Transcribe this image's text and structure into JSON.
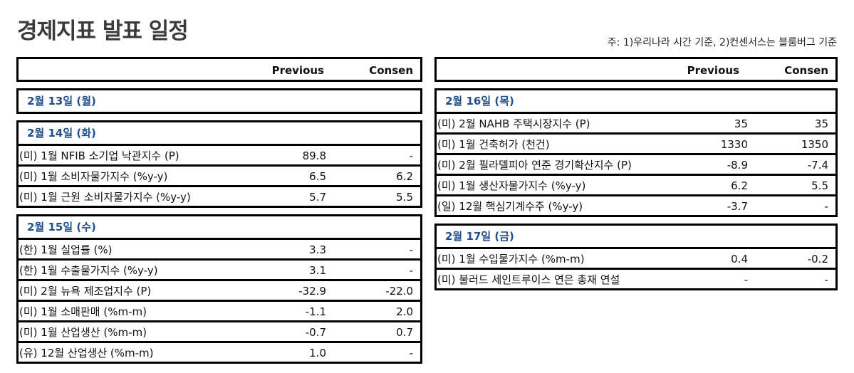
{
  "title": "경제지표 발표 일정",
  "note": "주: 1)우리나라 시간 기준, 2)컨센서스는 블룸버그 기준",
  "columns": {
    "previous": "Previous",
    "consensus": "Consen"
  },
  "left": [
    {
      "date": "2월 13일 (월)",
      "rows": []
    },
    {
      "date": "2월 14일 (화)",
      "rows": [
        {
          "name": "(미) 1월 NFIB 소기업 낙관지수 (P)",
          "prev": "89.8",
          "cons": "-"
        },
        {
          "name": "(미) 1월 소비자물가지수 (%y-y)",
          "prev": "6.5",
          "cons": "6.2"
        },
        {
          "name": "(미) 1월 근원 소비자물가지수 (%y-y)",
          "prev": "5.7",
          "cons": "5.5"
        }
      ]
    },
    {
      "date": "2월 15일 (수)",
      "rows": [
        {
          "name": "(한) 1월 실업률 (%)",
          "prev": "3.3",
          "cons": "-"
        },
        {
          "name": "(한) 1월 수출물가지수 (%y-y)",
          "prev": "3.1",
          "cons": "-"
        },
        {
          "name": "(미) 2월 뉴욕 제조업지수 (P)",
          "prev": "-32.9",
          "cons": "-22.0"
        },
        {
          "name": "(미) 1월 소매판매 (%m-m)",
          "prev": "-1.1",
          "cons": "2.0"
        },
        {
          "name": "(미) 1월 산업생산 (%m-m)",
          "prev": "-0.7",
          "cons": "0.7"
        },
        {
          "name": "(유) 12월 산업생산 (%m-m)",
          "prev": "1.0",
          "cons": "-"
        }
      ]
    }
  ],
  "right": [
    {
      "date": "2월 16일 (목)",
      "rows": [
        {
          "name": "(미) 2월 NAHB 주택시장지수 (P)",
          "prev": "35",
          "cons": "35"
        },
        {
          "name": "(미) 1월 건축허가 (천건)",
          "prev": "1330",
          "cons": "1350"
        },
        {
          "name": "(미) 2월 필라델피아 연준 경기확산지수 (P)",
          "prev": "-8.9",
          "cons": "-7.4"
        },
        {
          "name": "(미) 1월 생산자물가지수 (%y-y)",
          "prev": "6.2",
          "cons": "5.5"
        },
        {
          "name": "(일) 12월 핵심기계수주 (%y-y)",
          "prev": "-3.7",
          "cons": "-"
        }
      ]
    },
    {
      "date": "2월 17일 (금)",
      "rows": [
        {
          "name": "(미) 1월 수입물가지수 (%m-m)",
          "prev": "0.4",
          "cons": "-0.2"
        },
        {
          "name": "(미) 불러드 세인트루이스 연은 총재 연설",
          "prev": "-",
          "cons": "-"
        }
      ]
    }
  ],
  "colors": {
    "date_heading": "#1f4e8c",
    "title": "#3a3a3a",
    "border": "#000000"
  }
}
